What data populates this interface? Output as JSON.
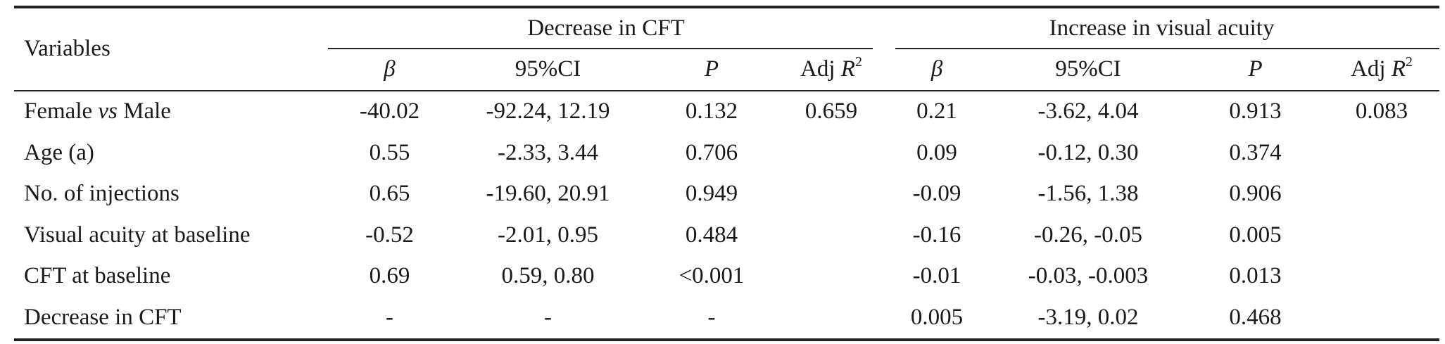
{
  "table": {
    "var_header": "Variables",
    "groups": [
      {
        "label": "Decrease in CFT"
      },
      {
        "label": "Increase in visual acuity"
      }
    ],
    "subheaders": {
      "beta": "β",
      "ci": "95%CI",
      "p": "P",
      "adj": "Adj ",
      "r": "R",
      "sq": "2"
    },
    "rows": [
      {
        "var_pre": "Female ",
        "var_it": "vs",
        "var_post": " Male",
        "cft_beta": "-40.02",
        "cft_ci": "-92.24, 12.19",
        "cft_p": "0.132",
        "cft_adj": "0.659",
        "va_beta": "0.21",
        "va_ci": "-3.62, 4.04",
        "va_p": "0.913",
        "va_adj": "0.083"
      },
      {
        "var_pre": "Age (a)",
        "var_it": "",
        "var_post": "",
        "cft_beta": "0.55",
        "cft_ci": "-2.33, 3.44",
        "cft_p": "0.706",
        "cft_adj": "",
        "va_beta": "0.09",
        "va_ci": "-0.12, 0.30",
        "va_p": "0.374",
        "va_adj": ""
      },
      {
        "var_pre": "No. of injections",
        "var_it": "",
        "var_post": "",
        "cft_beta": "0.65",
        "cft_ci": "-19.60, 20.91",
        "cft_p": "0.949",
        "cft_adj": "",
        "va_beta": "-0.09",
        "va_ci": "-1.56, 1.38",
        "va_p": "0.906",
        "va_adj": ""
      },
      {
        "var_pre": "Visual acuity at baseline",
        "var_it": "",
        "var_post": "",
        "cft_beta": "-0.52",
        "cft_ci": "-2.01, 0.95",
        "cft_p": "0.484",
        "cft_adj": "",
        "va_beta": "-0.16",
        "va_ci": "-0.26, -0.05",
        "va_p": "0.005",
        "va_adj": ""
      },
      {
        "var_pre": "CFT at baseline",
        "var_it": "",
        "var_post": "",
        "cft_beta": "0.69",
        "cft_ci": "0.59, 0.80",
        "cft_p": "<0.001",
        "cft_adj": "",
        "va_beta": "-0.01",
        "va_ci": "-0.03, -0.003",
        "va_p": "0.013",
        "va_adj": ""
      },
      {
        "var_pre": "Decrease in CFT",
        "var_it": "",
        "var_post": "",
        "cft_beta": "-",
        "cft_ci": "-",
        "cft_p": "-",
        "cft_adj": "",
        "va_beta": "0.005",
        "va_ci": "-3.19, 0.02",
        "va_p": "0.468",
        "va_adj": ""
      }
    ]
  }
}
